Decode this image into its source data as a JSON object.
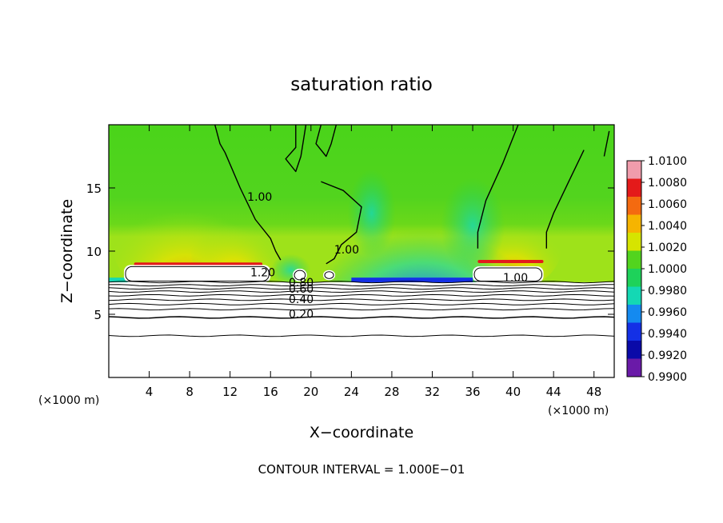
{
  "chart_data": {
    "type": "heatmap",
    "title": "saturation ratio",
    "xlabel": "X−coordinate",
    "ylabel": "Z−coordinate",
    "x_unit_left": "(×1000 m)",
    "x_unit_right": "(×1000 m)",
    "footer": "CONTOUR INTERVAL = 1.000E−01",
    "xlim": [
      0,
      50
    ],
    "ylim": [
      0,
      20
    ],
    "x_ticks": [
      4,
      8,
      12,
      16,
      20,
      24,
      28,
      32,
      36,
      40,
      44,
      48
    ],
    "y_ticks": [
      5,
      10,
      15
    ],
    "colorbar": {
      "labels": [
        "1.0100",
        "1.0080",
        "1.0060",
        "1.0040",
        "1.0020",
        "1.0000",
        "0.9980",
        "0.9960",
        "0.9940",
        "0.9920",
        "0.9900"
      ],
      "colors": [
        "#f09cac",
        "#e41a1a",
        "#f46a10",
        "#f6b400",
        "#d6e400",
        "#52d41e",
        "#1ed25a",
        "#14d8b4",
        "#148af0",
        "#1430e6",
        "#0a0aa8",
        "#6a1aa8"
      ]
    },
    "contour_labels": [
      {
        "text": "1.20",
        "x": 14.0,
        "y": 8.0
      },
      {
        "text": "0.80",
        "x": 17.8,
        "y": 7.2
      },
      {
        "text": "0.60",
        "x": 17.8,
        "y": 6.7
      },
      {
        "text": "0.40",
        "x": 17.8,
        "y": 5.9
      },
      {
        "text": "0.20",
        "x": 17.8,
        "y": 4.7
      },
      {
        "text": "1.00",
        "x": 13.7,
        "y": 14.0
      },
      {
        "text": "1.00",
        "x": 22.3,
        "y": 9.8
      },
      {
        "text": "1.00",
        "x": 39.0,
        "y": 7.6
      }
    ]
  }
}
